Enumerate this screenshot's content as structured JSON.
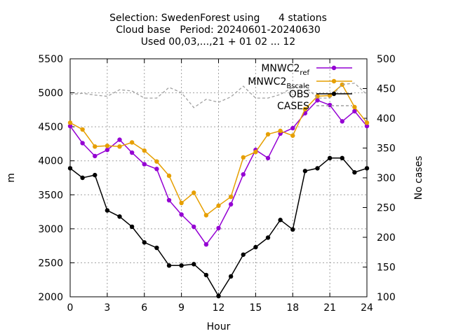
{
  "chart_data": {
    "type": "line",
    "title_lines": [
      "Selection: SwedenForest using      4 stations",
      "Cloud base   Period: 20240601-20240630",
      "Used 00,03,...,21 + 01 02 ... 12"
    ],
    "xlabel": "Hour",
    "ylabel": "m",
    "y2label": "No cases",
    "xlim": [
      0,
      24
    ],
    "ylim": [
      2000,
      5500
    ],
    "y2lim": [
      100,
      500
    ],
    "xticks": [
      0,
      3,
      6,
      9,
      12,
      15,
      18,
      21,
      24
    ],
    "yticks": [
      2000,
      2500,
      3000,
      3500,
      4000,
      4500,
      5000,
      5500
    ],
    "y2ticks": [
      100,
      150,
      200,
      250,
      300,
      350,
      400,
      450,
      500
    ],
    "grid": true,
    "legend_position": "top-right",
    "x": [
      0,
      1,
      2,
      3,
      4,
      5,
      6,
      7,
      8,
      9,
      10,
      11,
      12,
      13,
      14,
      15,
      16,
      17,
      18,
      19,
      20,
      21,
      22,
      23,
      24
    ],
    "series": [
      {
        "name": "MNWC2",
        "name_sub": "ref",
        "color": "#9400d3",
        "marker": "filled-circle",
        "axis": "y",
        "values": [
          4510,
          4260,
          4070,
          4160,
          4310,
          4120,
          3950,
          3880,
          3420,
          3210,
          3030,
          2770,
          3010,
          3360,
          3800,
          4160,
          4040,
          4400,
          4480,
          4700,
          4890,
          4820,
          4580,
          4730,
          4510
        ]
      },
      {
        "name": "MNWC2",
        "name_sub": "Bscale",
        "color": "#e69f00",
        "marker": "filled-circle",
        "axis": "y",
        "values": [
          4560,
          4460,
          4210,
          4220,
          4210,
          4270,
          4150,
          3990,
          3780,
          3380,
          3530,
          3200,
          3340,
          3470,
          4050,
          4130,
          4390,
          4440,
          4370,
          4760,
          4950,
          4960,
          5120,
          4790,
          4560
        ]
      },
      {
        "name": "OBS",
        "name_sub": "",
        "color": "#000000",
        "marker": "filled-circle",
        "axis": "y",
        "values": [
          3890,
          3750,
          3790,
          3270,
          3180,
          3030,
          2800,
          2720,
          2460,
          2460,
          2480,
          2320,
          2010,
          2300,
          2620,
          2730,
          2870,
          3130,
          2990,
          3850,
          3890,
          4040,
          4040,
          3830,
          3890
        ]
      },
      {
        "name": "CASES",
        "name_sub": "",
        "color": "#a0a0a0",
        "marker": "none",
        "dashed": true,
        "axis": "y2",
        "values": [
          440,
          442,
          439,
          437,
          448,
          446,
          434,
          434,
          452,
          443,
          418,
          432,
          427,
          436,
          454,
          434,
          434,
          440,
          452,
          454,
          434,
          434,
          457,
          459,
          440
        ]
      }
    ]
  }
}
